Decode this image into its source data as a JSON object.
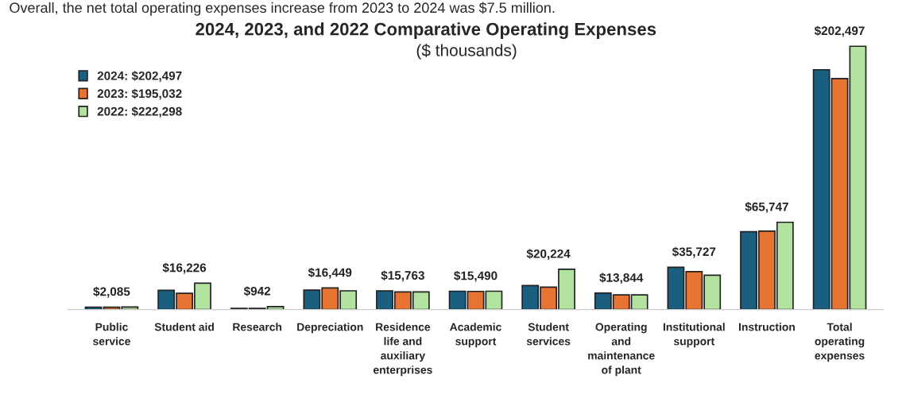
{
  "chart_data": {
    "type": "bar",
    "title": "2024, 2023, and 2022 Comparative Operating Expenses",
    "subtitle": "($ thousands)",
    "annotations": [
      "Overall, the net total operating expenses increase from 2023 to 2024 was $7.5 million."
    ],
    "categories": [
      "Public\nservice",
      "Student aid",
      "Research",
      "Depreciation",
      "Residence\nlife and\nauxiliary\nenterprises",
      "Academic\nsupport",
      "Student\nservices",
      "Operating\nand\nmaintenance\nof plant",
      "Institutional\nsupport",
      "Instruction",
      "Total\noperating\nexpenses"
    ],
    "series": [
      {
        "name": "2024: $202,497",
        "color": "#1a5e80",
        "values": [
          2085,
          16226,
          942,
          16449,
          15763,
          15490,
          20224,
          13844,
          35727,
          65747,
          202497
        ],
        "value_labels": [
          "$2,085",
          "$16,226",
          "$942",
          "$16,449",
          "$15,763",
          "$15,490",
          "$20,224",
          "$13,844",
          "$35,727",
          "$65,747",
          "$202,497"
        ]
      },
      {
        "name": "2023: $195,032",
        "color": "#e87434",
        "values": [
          2000,
          13750,
          1000,
          18200,
          14900,
          15300,
          18900,
          12400,
          32000,
          66200,
          195032
        ]
      },
      {
        "name": "2022: $222,298",
        "color": "#b3e3a0",
        "values": [
          2100,
          22250,
          2500,
          15800,
          14900,
          15500,
          34000,
          12400,
          29000,
          73700,
          222298
        ]
      }
    ],
    "legend": "top left",
    "grid": false
  }
}
